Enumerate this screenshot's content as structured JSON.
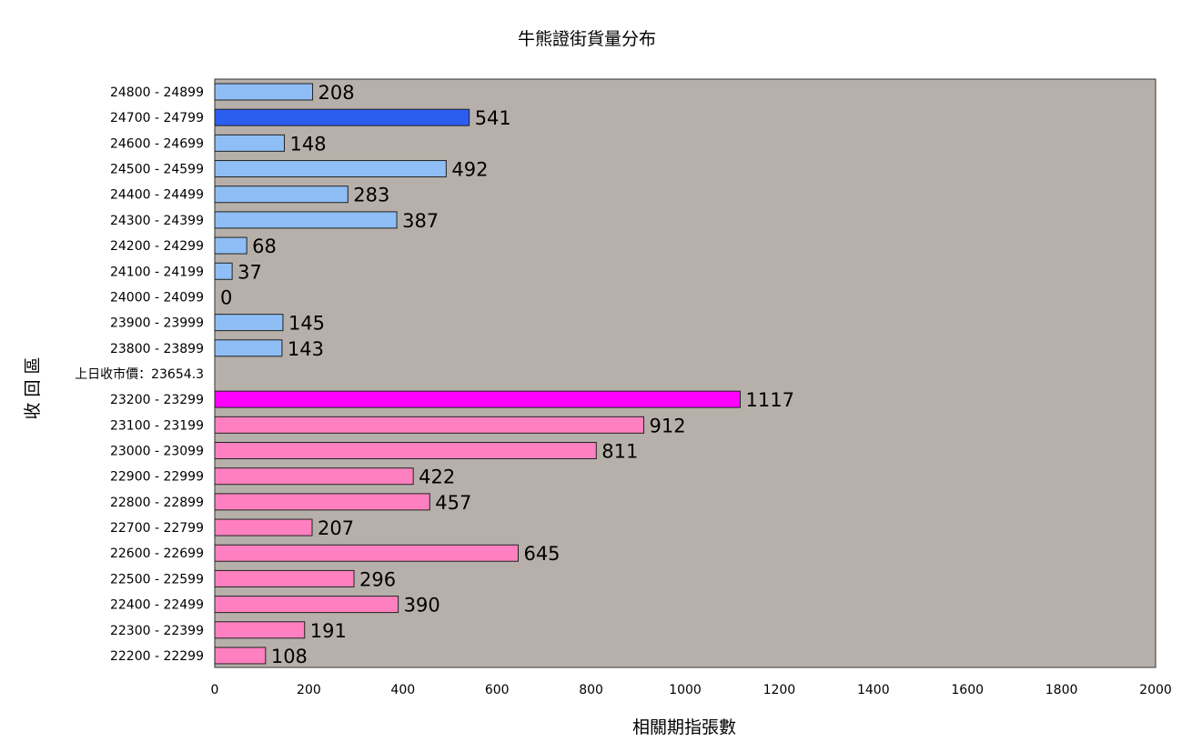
{
  "chart_data": {
    "type": "bar",
    "orientation": "horizontal",
    "title": "牛熊證街貨量分布",
    "xlabel": "相關期指張數",
    "ylabel": "收回區",
    "xlim": [
      0,
      2000
    ],
    "xticks": [
      0,
      200,
      400,
      600,
      800,
      1000,
      1200,
      1400,
      1600,
      1800,
      2000
    ],
    "grid": false,
    "plot_background": "#b7b0aa",
    "categories": [
      "24800 - 24899",
      "24700 - 24799",
      "24600 - 24699",
      "24500 - 24599",
      "24400 - 24499",
      "24300 - 24399",
      "24200 - 24299",
      "24100 - 24199",
      "24000 - 24099",
      "23900 - 23999",
      "23800 - 23899",
      "上日收市價：23654.3",
      "23200 - 23299",
      "23100 - 23199",
      "23000 - 23099",
      "22900 - 22999",
      "22800 - 22899",
      "22700 - 22799",
      "22600 - 22699",
      "22500 - 22599",
      "22400 - 22499",
      "22300 - 22399",
      "22200 - 22299"
    ],
    "values": [
      208,
      541,
      148,
      492,
      283,
      387,
      68,
      37,
      0,
      145,
      143,
      null,
      1117,
      912,
      811,
      422,
      457,
      207,
      645,
      296,
      390,
      191,
      108
    ],
    "value_labels": [
      "208",
      "541",
      "148",
      "492",
      "283",
      "387",
      "68",
      "37",
      "0",
      "145",
      "143",
      "",
      "1117",
      "912",
      "811",
      "422",
      "457",
      "207",
      "645",
      "296",
      "390",
      "191",
      "108"
    ],
    "bar_colors": [
      "#8ebef5",
      "#2b5ef0",
      "#8ebef5",
      "#8ebef5",
      "#8ebef5",
      "#8ebef5",
      "#8ebef5",
      "#8ebef5",
      "#8ebef5",
      "#8ebef5",
      "#8ebef5",
      null,
      "#ff00ff",
      "#ff80c0",
      "#ff80c0",
      "#ff80c0",
      "#ff80c0",
      "#ff80c0",
      "#ff80c0",
      "#ff80c0",
      "#ff80c0",
      "#ff80c0",
      "#ff80c0"
    ]
  }
}
